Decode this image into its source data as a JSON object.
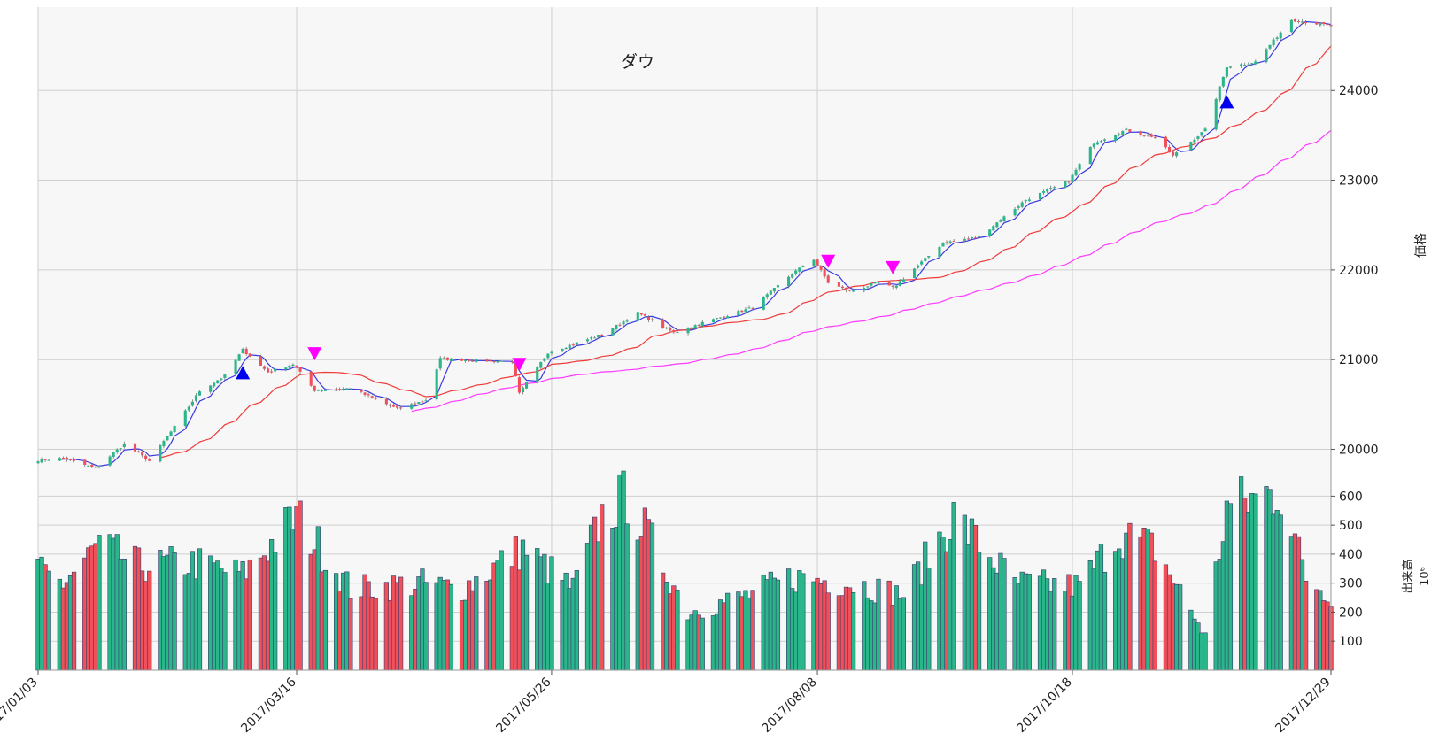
{
  "title": "ダウ",
  "colors": {
    "up": "#2bb58a",
    "down": "#f0505a",
    "ma_short": "#3a3adf",
    "ma_mid": "#f03a3a",
    "ma_long": "#ff3aff",
    "buy_marker": "#0000ee",
    "sell_marker": "#ff00ff",
    "panel_bg": "#f7f7f7",
    "grid": "#cfcfcf"
  },
  "chart_data": {
    "type": "candlestick",
    "price_axis": {
      "label": "価格",
      "ticks": [
        20000,
        21000,
        22000,
        23000,
        24000
      ],
      "range": [
        19640,
        24930
      ]
    },
    "volume_axis": {
      "label": "出来高",
      "unit": "10⁶",
      "ticks": [
        100,
        200,
        300,
        400,
        500,
        600
      ],
      "range": [
        0,
        650
      ]
    },
    "x_ticks": [
      "2017/01/03",
      "2017/03/16",
      "2017/05/26",
      "2017/08/08",
      "2017/10/18",
      "2017/12/29"
    ],
    "start_date": "2017-01-03",
    "end_date": "2017-12-29",
    "close_keypoints": [
      [
        "2017-01-03",
        19880
      ],
      [
        "2017-01-10",
        19900
      ],
      [
        "2017-01-19",
        19790
      ],
      [
        "2017-01-27",
        20060
      ],
      [
        "2017-02-03",
        19870
      ],
      [
        "2017-02-10",
        20250
      ],
      [
        "2017-02-17",
        20650
      ],
      [
        "2017-02-24",
        20820
      ],
      [
        "2017-03-01",
        21110
      ],
      [
        "2017-03-08",
        20860
      ],
      [
        "2017-03-15",
        20950
      ],
      [
        "2017-03-21",
        20660
      ],
      [
        "2017-03-31",
        20680
      ],
      [
        "2017-04-13",
        20450
      ],
      [
        "2017-04-21",
        20550
      ],
      [
        "2017-04-25",
        21010
      ],
      [
        "2017-05-05",
        20990
      ],
      [
        "2017-05-15",
        20980
      ],
      [
        "2017-05-17",
        20620
      ],
      [
        "2017-05-25",
        21080
      ],
      [
        "2017-06-09",
        21280
      ],
      [
        "2017-06-19",
        21520
      ],
      [
        "2017-06-29",
        21300
      ],
      [
        "2017-07-07",
        21410
      ],
      [
        "2017-07-21",
        21580
      ],
      [
        "2017-08-01",
        21960
      ],
      [
        "2017-08-07",
        22120
      ],
      [
        "2017-08-11",
        21860
      ],
      [
        "2017-08-17",
        21760
      ],
      [
        "2017-08-25",
        21860
      ],
      [
        "2017-08-29",
        21800
      ],
      [
        "2017-09-12",
        22300
      ],
      [
        "2017-09-22",
        22370
      ],
      [
        "2017-10-05",
        22780
      ],
      [
        "2017-10-17",
        22990
      ],
      [
        "2017-10-24",
        23420
      ],
      [
        "2017-11-02",
        23560
      ],
      [
        "2017-11-10",
        23480
      ],
      [
        "2017-11-15",
        23270
      ],
      [
        "2017-11-24",
        23560
      ],
      [
        "2017-11-30",
        24270
      ],
      [
        "2017-12-04",
        24290
      ],
      [
        "2017-12-08",
        24320
      ],
      [
        "2017-12-18",
        24790
      ],
      [
        "2017-12-29",
        24720
      ]
    ],
    "volume_keypoints": [
      [
        "2017-01-03",
        340
      ],
      [
        "2017-01-10",
        300
      ],
      [
        "2017-01-20",
        430
      ],
      [
        "2017-01-31",
        360
      ],
      [
        "2017-02-15",
        370
      ],
      [
        "2017-03-01",
        330
      ],
      [
        "2017-03-16",
        530
      ],
      [
        "2017-03-31",
        280
      ],
      [
        "2017-04-20",
        300
      ],
      [
        "2017-05-01",
        280
      ],
      [
        "2017-05-18",
        420
      ],
      [
        "2017-06-01",
        280
      ],
      [
        "2017-06-09",
        530
      ],
      [
        "2017-06-16",
        600
      ],
      [
        "2017-07-03",
        200
      ],
      [
        "2017-07-20",
        260
      ],
      [
        "2017-08-01",
        320
      ],
      [
        "2017-08-18",
        300
      ],
      [
        "2017-09-01",
        260
      ],
      [
        "2017-09-15",
        530
      ],
      [
        "2017-10-02",
        300
      ],
      [
        "2017-10-20",
        290
      ],
      [
        "2017-10-31",
        470
      ],
      [
        "2017-11-10",
        420
      ],
      [
        "2017-11-24",
        120
      ],
      [
        "2017-11-30",
        560
      ],
      [
        "2017-12-15",
        620
      ],
      [
        "2017-12-22",
        320
      ],
      [
        "2017-12-29",
        260
      ]
    ],
    "moving_averages": [
      {
        "window": 5,
        "color_key": "ma_short"
      },
      {
        "window": 25,
        "color_key": "ma_mid"
      },
      {
        "window": 75,
        "color_key": "ma_long"
      }
    ],
    "signals": [
      {
        "date": "2017-03-01",
        "type": "buy",
        "price": 20850
      },
      {
        "date": "2017-03-21",
        "type": "sell",
        "price": 21070
      },
      {
        "date": "2017-05-17",
        "type": "sell",
        "price": 20950
      },
      {
        "date": "2017-08-11",
        "type": "sell",
        "price": 22100
      },
      {
        "date": "2017-08-29",
        "type": "sell",
        "price": 22030
      },
      {
        "date": "2017-11-30",
        "type": "buy",
        "price": 23870
      }
    ]
  }
}
